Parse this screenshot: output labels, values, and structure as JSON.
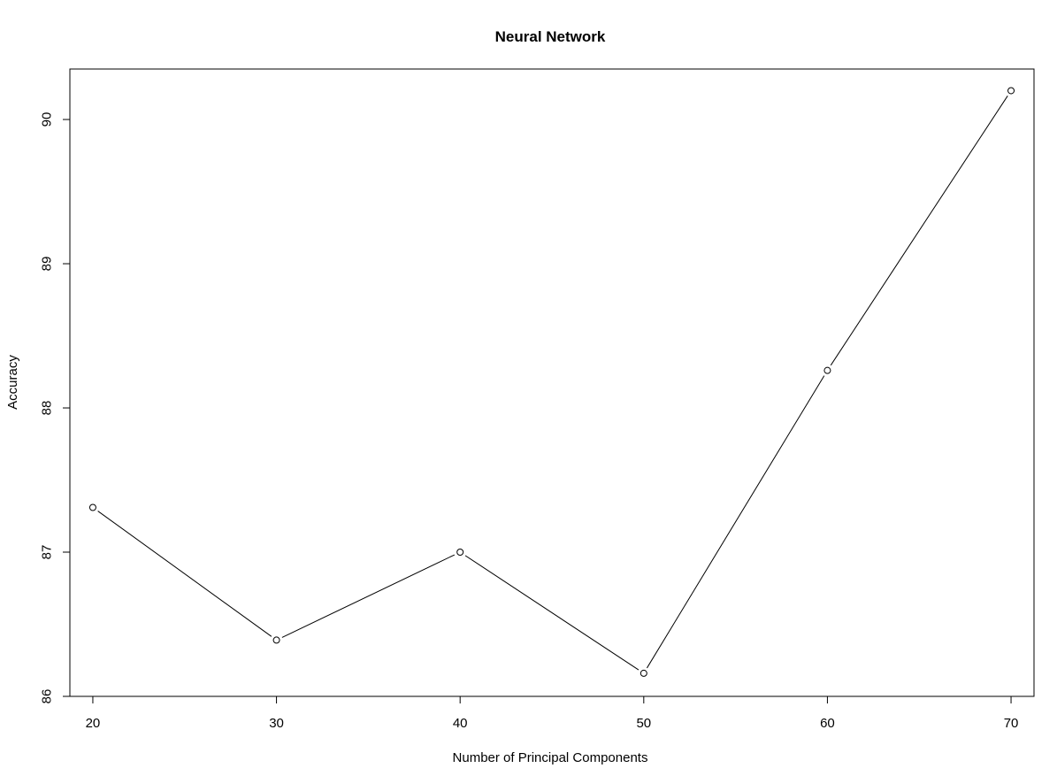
{
  "chart_data": {
    "type": "line",
    "title": "Neural Network",
    "xlabel": "Number of Principal Components",
    "ylabel": "Accuracy",
    "x": [
      20,
      30,
      40,
      50,
      60,
      70
    ],
    "series": [
      {
        "values": [
          87.31,
          86.39,
          87.0,
          86.16,
          88.26,
          90.2
        ]
      }
    ],
    "xticks": [
      20,
      30,
      40,
      50,
      60,
      70
    ],
    "yticks": [
      86,
      87,
      88,
      89,
      90
    ],
    "xlim": [
      18.75,
      71.25
    ],
    "ylim": [
      86.0,
      90.35
    ],
    "grid": false,
    "markers": "open-circle",
    "line_color": "#000000"
  }
}
